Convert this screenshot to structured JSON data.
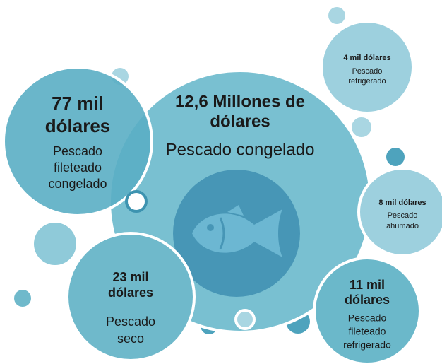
{
  "nodes": [
    {
      "value": [
        "12,6 Millones de",
        "dólares"
      ],
      "label": [
        "Pescado congelado"
      ]
    },
    {
      "value": [
        "77 mil",
        "dólares"
      ],
      "label": [
        "Pescado",
        "fileteado",
        "congelado"
      ]
    },
    {
      "value": [
        "4 mil dólares"
      ],
      "label": [
        "Pescado",
        "refrigerado"
      ]
    },
    {
      "value": [
        "8 mil dólares"
      ],
      "label": [
        "Pescado",
        "ahumado"
      ]
    },
    {
      "value": [
        "11 mil",
        "dólares"
      ],
      "label": [
        "Pescado",
        "fileteado",
        "refrigerado"
      ]
    },
    {
      "value": [
        "23 mil",
        "dólares"
      ],
      "label": [
        "Pescado",
        "seco"
      ]
    }
  ]
}
